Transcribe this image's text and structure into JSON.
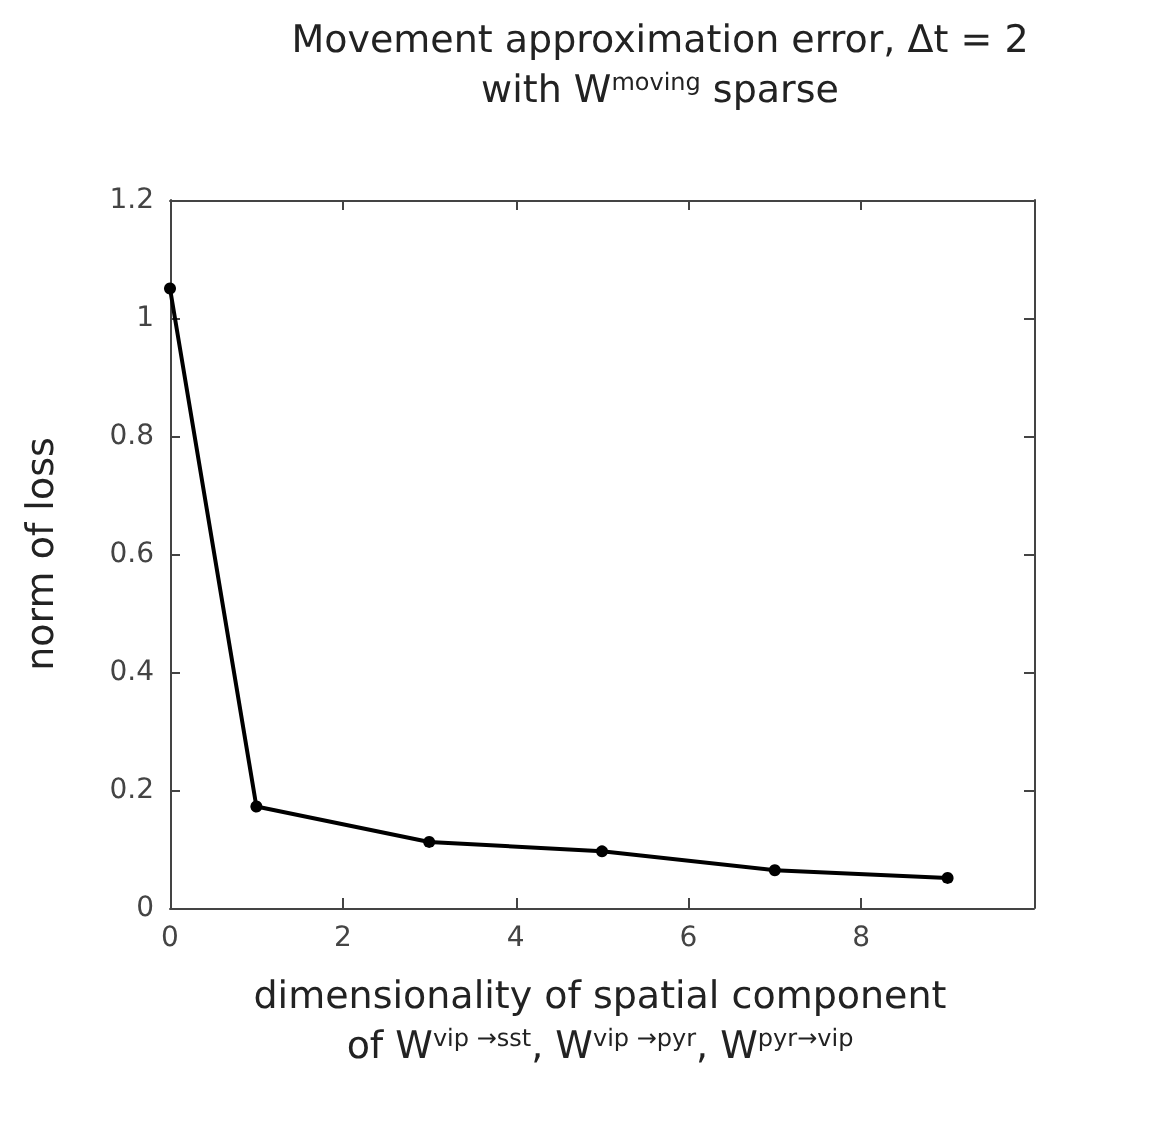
{
  "chart_data": {
    "type": "line",
    "title": "Movement approximation error, Δt = 2\nwith W$^{moving}$ sparse",
    "xlabel": "dimensionality of spatial component\nof W$^{vip →sst}$, W$^{vip →pyr}$, W$^{pyr→vip}$",
    "ylabel": "norm of loss",
    "x": [
      0,
      1,
      3,
      5,
      7,
      9
    ],
    "series": [
      {
        "color": "#000000",
        "values": [
          1.05,
          0.172,
          0.112,
          0.096,
          0.064,
          0.051
        ]
      }
    ],
    "xlim": [
      0,
      10
    ],
    "xticks": [
      0,
      2,
      4,
      6,
      8
    ],
    "ylim": [
      0,
      1.2
    ],
    "yticks": [
      0,
      0.2,
      0.4,
      0.6,
      0.8,
      1,
      1.2
    ],
    "grid": false,
    "marker": "circle",
    "line_style": "solid"
  }
}
